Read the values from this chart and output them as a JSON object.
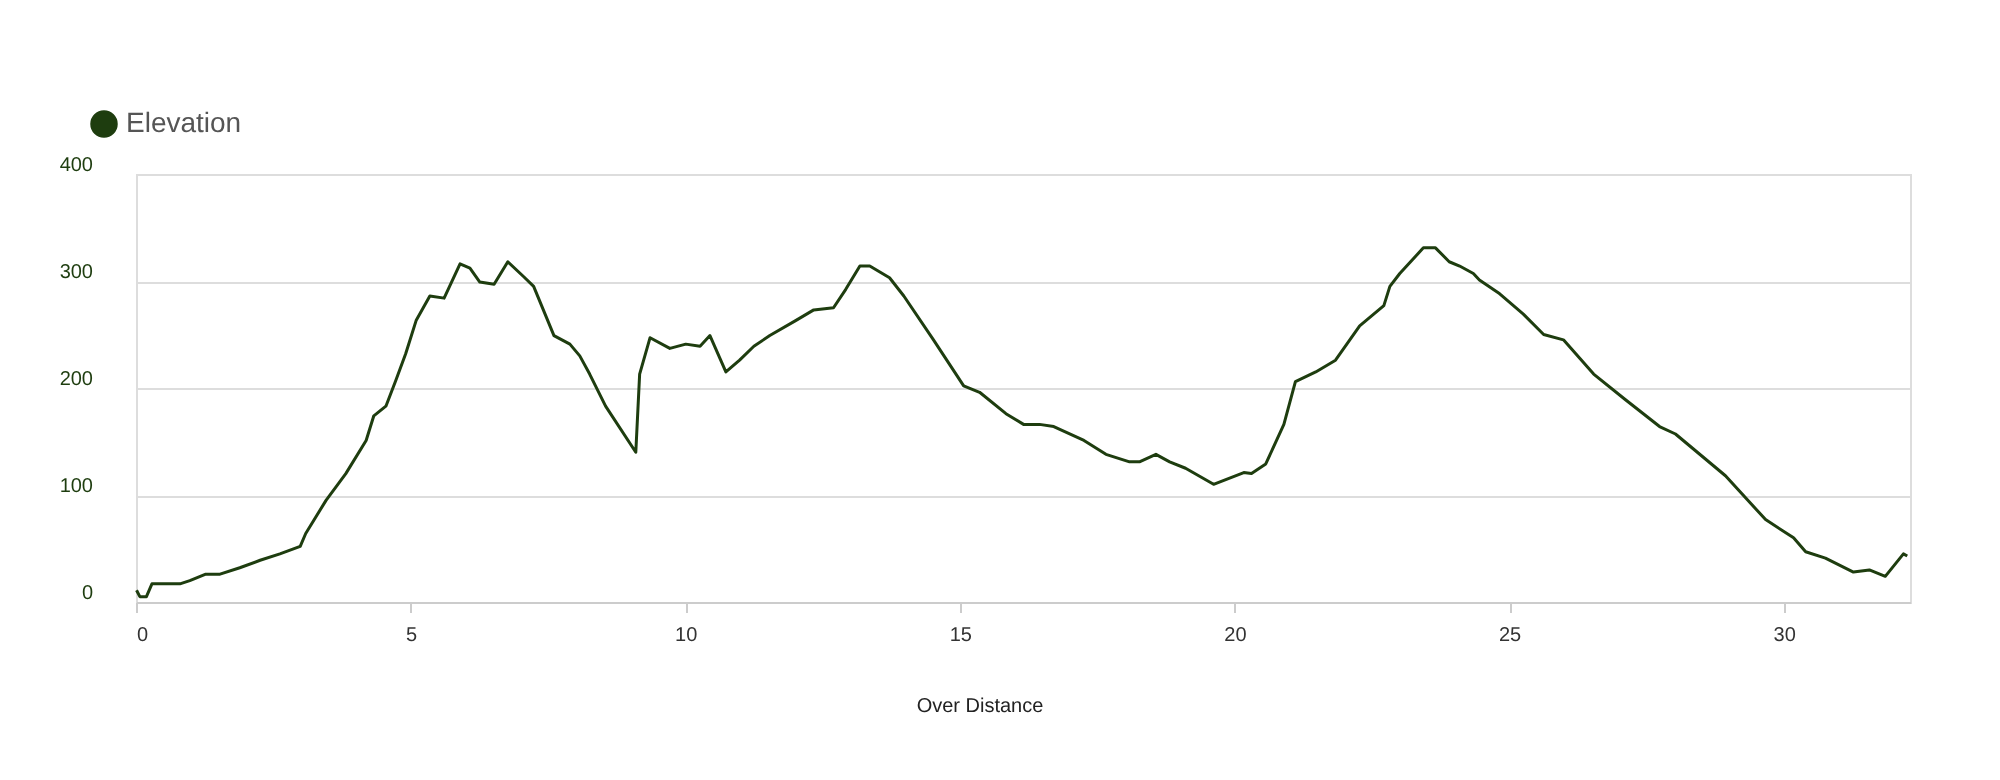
{
  "chart_data": {
    "type": "line",
    "x": [
      0.01,
      0.07,
      0.19,
      0.29,
      0.8,
      0.98,
      1.27,
      1.53,
      1.89,
      2.26,
      2.62,
      2.99,
      3.09,
      3.46,
      3.82,
      4.19,
      4.33,
      4.55,
      4.73,
      4.91,
      5.1,
      5.35,
      5.61,
      5.9,
      6.08,
      6.26,
      6.52,
      6.77,
      7.06,
      7.24,
      7.61,
      7.9,
      8.08,
      8.26,
      8.55,
      9.1,
      9.17,
      9.36,
      9.72,
      10.01,
      10.27,
      10.45,
      10.74,
      10.99,
      11.25,
      11.54,
      12.01,
      12.34,
      12.7,
      12.92,
      13.18,
      13.36,
      13.72,
      13.98,
      14.52,
      15.07,
      15.36,
      15.84,
      16.16,
      16.45,
      16.71,
      17.26,
      17.66,
      18.09,
      18.27,
      18.57,
      18.82,
      19.11,
      19.62,
      20.17,
      20.31,
      20.57,
      20.9,
      21.11,
      21.48,
      21.84,
      22.28,
      22.72,
      22.83,
      23.01,
      23.44,
      23.66,
      23.91,
      24.1,
      24.35,
      24.46,
      24.83,
      25.26,
      25.63,
      25.99,
      26.54,
      27.12,
      27.74,
      28.03,
      28.94,
      29.67,
      30.18,
      30.4,
      30.76,
      31.27,
      31.56,
      31.85,
      32.18,
      32.25
    ],
    "series": [
      {
        "name": "Elevation",
        "color": "#1e3d0f",
        "values": [
          11,
          5,
          5,
          17,
          17,
          20,
          26,
          26,
          32,
          39,
          45,
          52,
          64,
          95,
          120,
          151,
          174,
          183,
          207,
          232,
          263,
          286,
          284,
          316,
          312,
          299,
          297,
          318,
          304,
          295,
          249,
          241,
          230,
          213,
          183,
          140,
          213,
          247,
          237,
          241,
          239,
          249,
          215,
          226,
          239,
          249,
          263,
          273,
          275,
          292,
          314,
          314,
          303,
          286,
          245,
          202,
          196,
          176,
          166,
          166,
          164,
          151,
          138,
          131,
          131,
          138,
          131,
          125,
          110,
          121,
          120,
          129,
          166,
          206,
          215,
          226,
          258,
          277,
          295,
          307,
          331,
          331,
          318,
          314,
          307,
          301,
          288,
          269,
          250,
          245,
          213,
          189,
          164,
          157,
          118,
          77,
          60,
          47,
          41,
          28,
          30,
          24,
          45,
          43
        ]
      }
    ],
    "xlim": [
      0,
      32.3
    ],
    "ylim": [
      0,
      400
    ],
    "xticks": [
      0,
      5,
      10,
      15,
      20,
      25,
      30
    ],
    "yticks": [
      0,
      100,
      200,
      300,
      400
    ],
    "grid": "y",
    "legend": "top left",
    "marker": "none",
    "line_style": "solid",
    "annotations": [
      "Over Distance"
    ]
  }
}
